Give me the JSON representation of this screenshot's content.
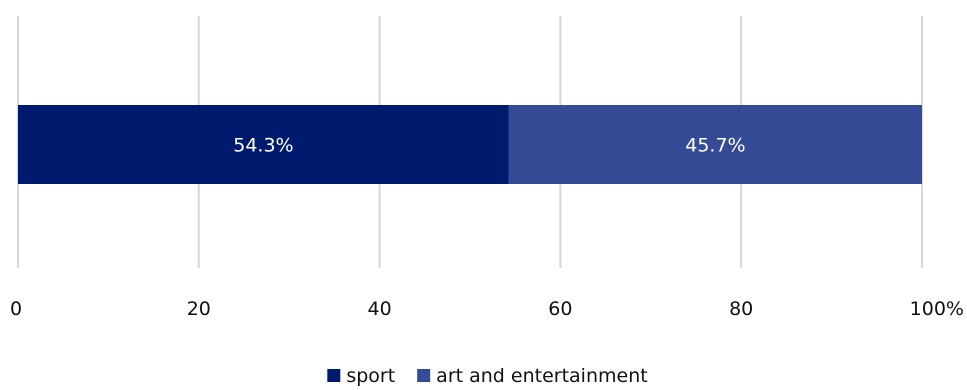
{
  "chart_data": {
    "type": "bar",
    "orientation": "horizontal",
    "stacked": true,
    "normalized": true,
    "categories": [
      ""
    ],
    "series": [
      {
        "name": "sport",
        "values": [
          54.3
        ],
        "label": "54.3%",
        "color": "#001b6e"
      },
      {
        "name": "art and entertainment",
        "values": [
          45.7
        ],
        "label": "45.7%",
        "color": "#354b95"
      }
    ],
    "xlim": [
      0,
      100
    ],
    "xticks": [
      {
        "value": 0,
        "label": "0"
      },
      {
        "value": 20,
        "label": "20"
      },
      {
        "value": 40,
        "label": "40"
      },
      {
        "value": 60,
        "label": "60"
      },
      {
        "value": 80,
        "label": "80"
      },
      {
        "value": 100,
        "label": "100%"
      }
    ],
    "grid": true,
    "legend": "bottom-center"
  }
}
